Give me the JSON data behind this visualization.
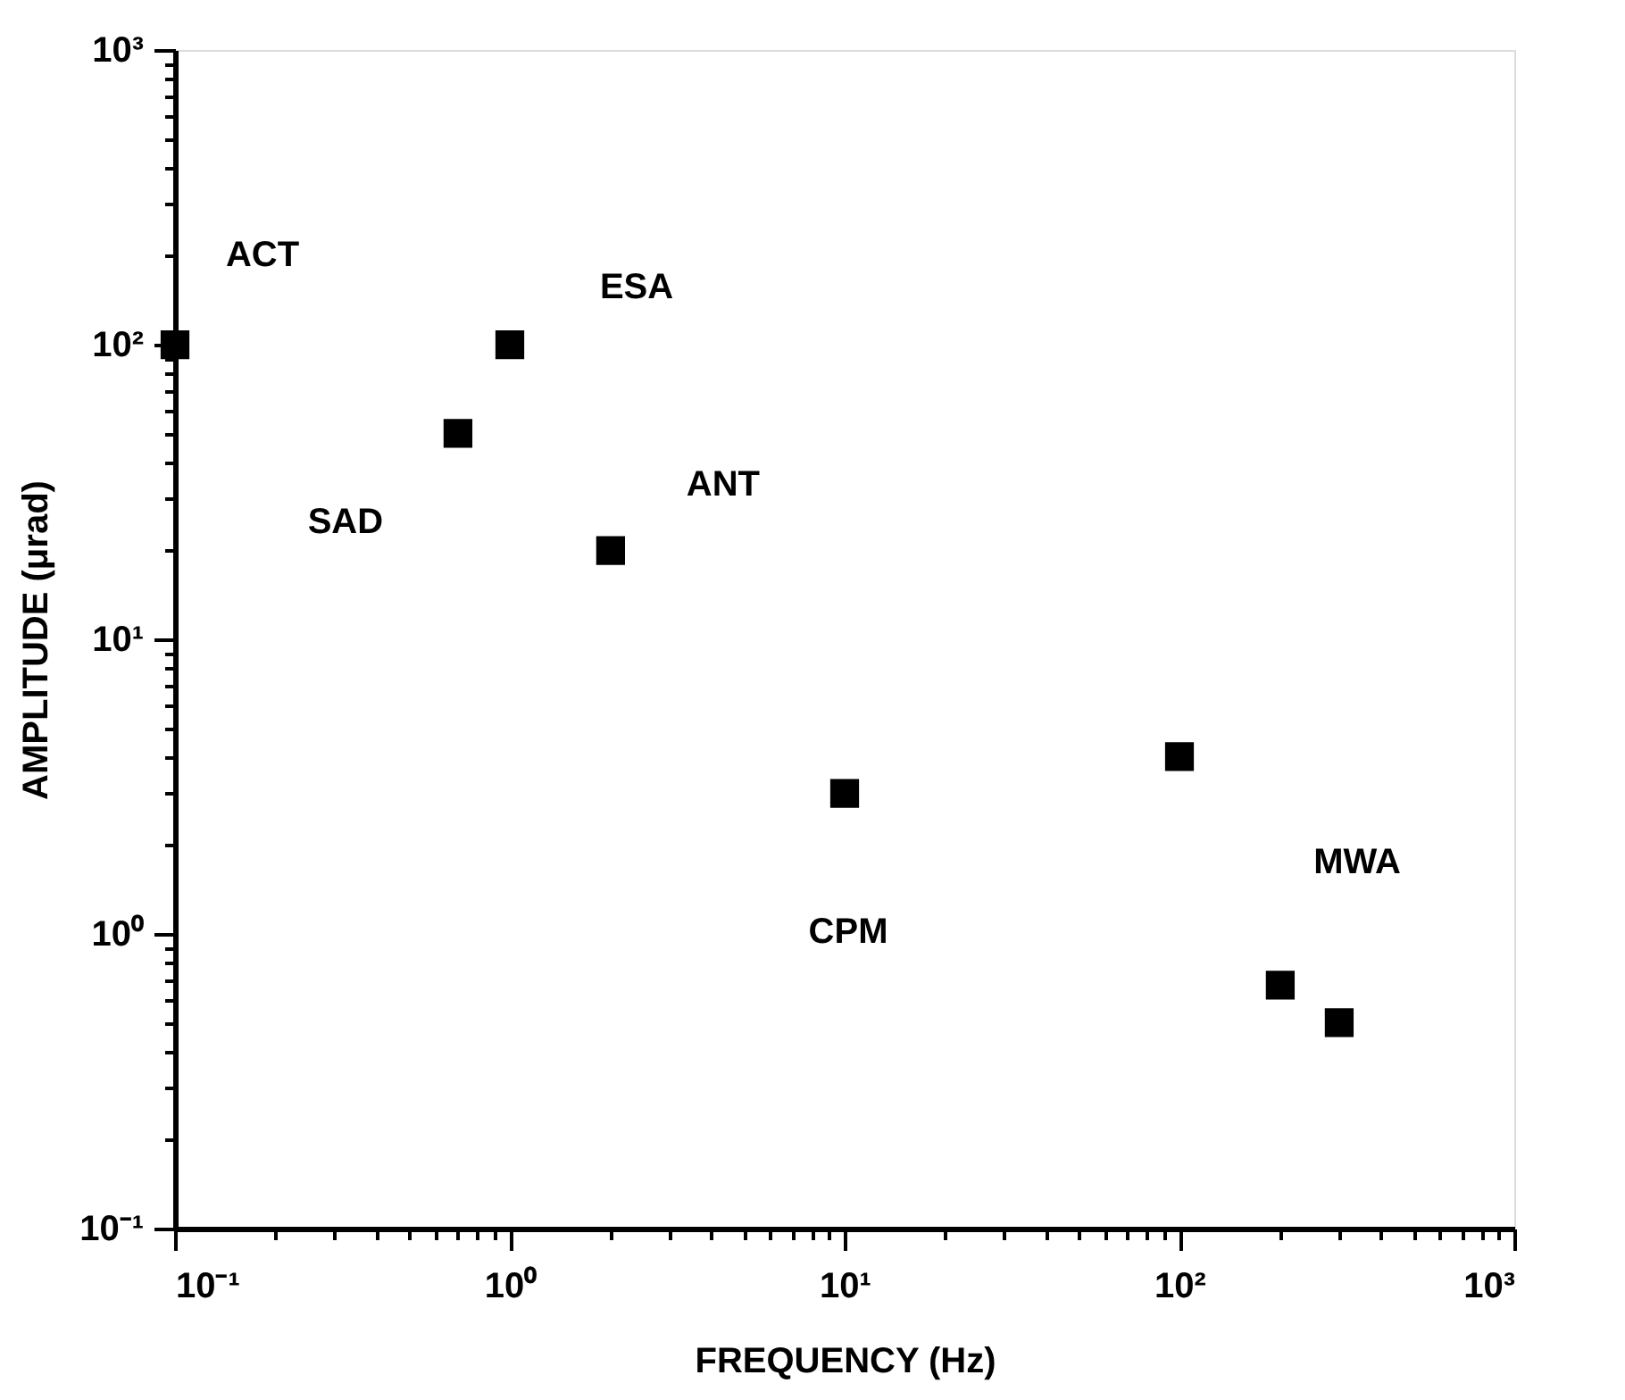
{
  "chart_data": {
    "type": "scatter",
    "xlabel": "FREQUENCY (Hz)",
    "ylabel": "AMPLITUDE (μrad)",
    "log": "xy",
    "marker": "square",
    "grid": false,
    "xlim": [
      0.1,
      1000
    ],
    "ylim": [
      0.1,
      1000
    ],
    "xticks": [
      {
        "value": 0.1,
        "label": "10⁻¹"
      },
      {
        "value": 0.2,
        "label": null
      },
      {
        "value": 0.3,
        "label": null
      },
      {
        "value": 0.4,
        "label": null
      },
      {
        "value": 0.5,
        "label": null
      },
      {
        "value": 0.6,
        "label": null
      },
      {
        "value": 0.7,
        "label": null
      },
      {
        "value": 0.8,
        "label": null
      },
      {
        "value": 0.9,
        "label": null
      },
      {
        "value": 1,
        "label": "10⁰"
      },
      {
        "value": 2,
        "label": null
      },
      {
        "value": 3,
        "label": null
      },
      {
        "value": 4,
        "label": null
      },
      {
        "value": 5,
        "label": null
      },
      {
        "value": 6,
        "label": null
      },
      {
        "value": 7,
        "label": null
      },
      {
        "value": 8,
        "label": null
      },
      {
        "value": 9,
        "label": null
      },
      {
        "value": 10,
        "label": "10¹"
      },
      {
        "value": 20,
        "label": null
      },
      {
        "value": 30,
        "label": null
      },
      {
        "value": 40,
        "label": null
      },
      {
        "value": 50,
        "label": null
      },
      {
        "value": 60,
        "label": null
      },
      {
        "value": 70,
        "label": null
      },
      {
        "value": 80,
        "label": null
      },
      {
        "value": 90,
        "label": null
      },
      {
        "value": 100,
        "label": "10²"
      },
      {
        "value": 200,
        "label": null
      },
      {
        "value": 300,
        "label": null
      },
      {
        "value": 400,
        "label": null
      },
      {
        "value": 500,
        "label": null
      },
      {
        "value": 600,
        "label": null
      },
      {
        "value": 700,
        "label": null
      },
      {
        "value": 800,
        "label": null
      },
      {
        "value": 900,
        "label": null
      },
      {
        "value": 1000,
        "label": "10³"
      }
    ],
    "yticks": [
      {
        "value": 0.1,
        "label": "10⁻¹"
      },
      {
        "value": 0.2,
        "label": null
      },
      {
        "value": 0.3,
        "label": null
      },
      {
        "value": 0.4,
        "label": null
      },
      {
        "value": 0.5,
        "label": null
      },
      {
        "value": 0.6,
        "label": null
      },
      {
        "value": 0.7,
        "label": null
      },
      {
        "value": 0.8,
        "label": null
      },
      {
        "value": 0.9,
        "label": null
      },
      {
        "value": 1,
        "label": "10⁰"
      },
      {
        "value": 2,
        "label": null
      },
      {
        "value": 3,
        "label": null
      },
      {
        "value": 4,
        "label": null
      },
      {
        "value": 5,
        "label": null
      },
      {
        "value": 6,
        "label": null
      },
      {
        "value": 7,
        "label": null
      },
      {
        "value": 8,
        "label": null
      },
      {
        "value": 9,
        "label": null
      },
      {
        "value": 10,
        "label": "10¹"
      },
      {
        "value": 20,
        "label": null
      },
      {
        "value": 30,
        "label": null
      },
      {
        "value": 40,
        "label": null
      },
      {
        "value": 50,
        "label": null
      },
      {
        "value": 60,
        "label": null
      },
      {
        "value": 70,
        "label": null
      },
      {
        "value": 80,
        "label": null
      },
      {
        "value": 90,
        "label": null
      },
      {
        "value": 100,
        "label": "10²"
      },
      {
        "value": 200,
        "label": null
      },
      {
        "value": 300,
        "label": null
      },
      {
        "value": 400,
        "label": null
      },
      {
        "value": 500,
        "label": null
      },
      {
        "value": 600,
        "label": null
      },
      {
        "value": 700,
        "label": null
      },
      {
        "value": 800,
        "label": null
      },
      {
        "value": 900,
        "label": null
      },
      {
        "value": 1000,
        "label": "10³"
      }
    ],
    "series": [
      {
        "color": "#000000",
        "x": [
          0.1,
          0.7,
          1,
          2,
          10,
          100,
          200,
          300
        ],
        "values": [
          100,
          50,
          100,
          20,
          3,
          4,
          0.67,
          0.5
        ]
      }
    ],
    "annotations": [
      {
        "text": "ACT",
        "x": 0.1,
        "y": 100
      },
      {
        "text": "ESA",
        "x": 1,
        "y": 100
      },
      {
        "text": "SAD",
        "x": 0.7,
        "y": 50
      },
      {
        "text": "ANT",
        "x": 2,
        "y": 20
      },
      "CPM",
      "MWA"
    ]
  }
}
